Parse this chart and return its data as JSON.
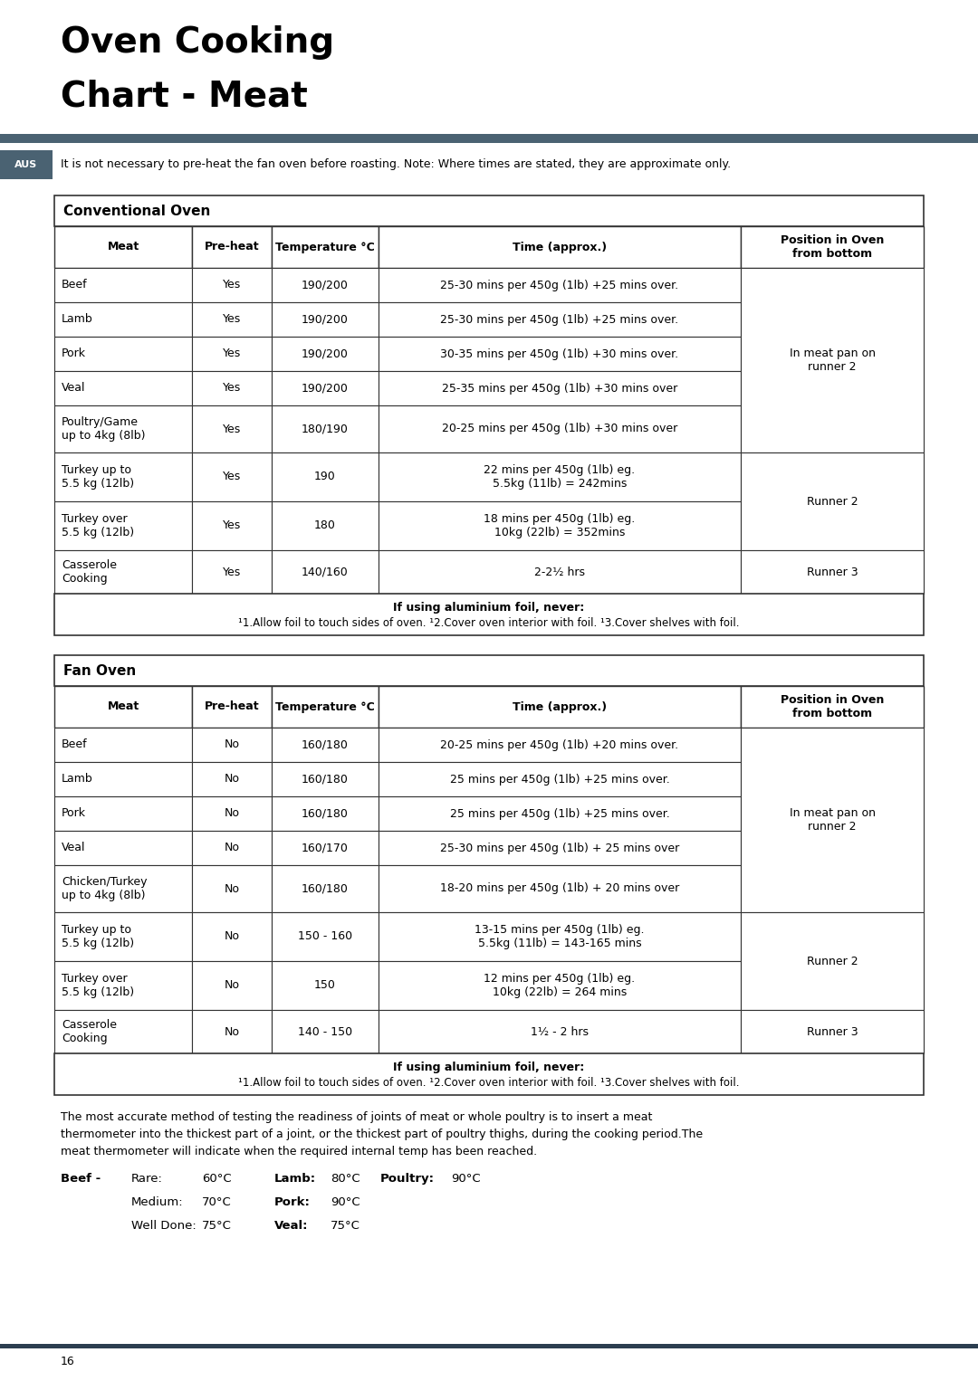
{
  "title_line1": "Oven Cooking",
  "title_line2": "Chart - Meat",
  "header_bar_color": "#4a6272",
  "aus_bg_color": "#4a6272",
  "note_text": "It is not necessary to pre-heat the fan oven before roasting. Note: Where times are stated, they are approximate only.",
  "conv_oven_title": "Conventional Oven",
  "fan_oven_title": "Fan Oven",
  "conv_rows": [
    [
      "Beef",
      "Yes",
      "190/200",
      "25-30 mins per 450g (1lb) +25 mins over.",
      ""
    ],
    [
      "Lamb",
      "Yes",
      "190/200",
      "25-30 mins per 450g (1lb) +25 mins over.",
      ""
    ],
    [
      "Pork",
      "Yes",
      "190/200",
      "30-35 mins per 450g (1lb) +30 mins over.",
      ""
    ],
    [
      "Veal",
      "Yes",
      "190/200",
      "25-35 mins per 450g (1lb) +30 mins over",
      ""
    ],
    [
      "Poultry/Game\nup to 4kg (8lb)",
      "Yes",
      "180/190",
      "20-25 mins per 450g (1lb) +30 mins over",
      ""
    ],
    [
      "Turkey up to\n5.5 kg (12lb)",
      "Yes",
      "190",
      "22 mins per 450g (1lb) eg.\n5.5kg (11lb) = 242mins",
      ""
    ],
    [
      "Turkey over\n5.5 kg (12lb)",
      "Yes",
      "180",
      "18 mins per 450g (1lb) eg.\n10kg (22lb) = 352mins",
      ""
    ],
    [
      "Casserole\nCooking",
      "Yes",
      "140/160",
      "2-2½ hrs",
      "Runner 3"
    ]
  ],
  "fan_rows": [
    [
      "Beef",
      "No",
      "160/180",
      "20-25 mins per 450g (1lb) +20 mins over.",
      ""
    ],
    [
      "Lamb",
      "No",
      "160/180",
      "25 mins per 450g (1lb) +25 mins over.",
      ""
    ],
    [
      "Pork",
      "No",
      "160/180",
      "25 mins per 450g (1lb) +25 mins over.",
      ""
    ],
    [
      "Veal",
      "No",
      "160/170",
      "25-30 mins per 450g (1lb) + 25 mins over",
      ""
    ],
    [
      "Chicken/Turkey\nup to 4kg (8lb)",
      "No",
      "160/180",
      "18-20 mins per 450g (1lb) + 20 mins over",
      ""
    ],
    [
      "Turkey up to\n5.5 kg (12lb)",
      "No",
      "150 - 160",
      "13-15 mins per 450g (1lb) eg.\n5.5kg (11lb) = 143-165 mins",
      ""
    ],
    [
      "Turkey over\n5.5 kg (12lb)",
      "No",
      "150",
      "12 mins per 450g (1lb) eg.\n10kg (22lb) = 264 mins",
      ""
    ],
    [
      "Casserole\nCooking",
      "No",
      "140 - 150",
      "1½ - 2 hrs",
      "Runner 3"
    ]
  ],
  "footer_text": "The most accurate method of testing the readiness of joints of meat or whole poultry is to insert a meat\nthermometer into the thickest part of a joint, or the thickest part of poultry thighs, during the cooking period.The\nmeat thermometer will indicate when the required internal temp has been reached.",
  "page_number": "16",
  "bg_color": "#ffffff"
}
